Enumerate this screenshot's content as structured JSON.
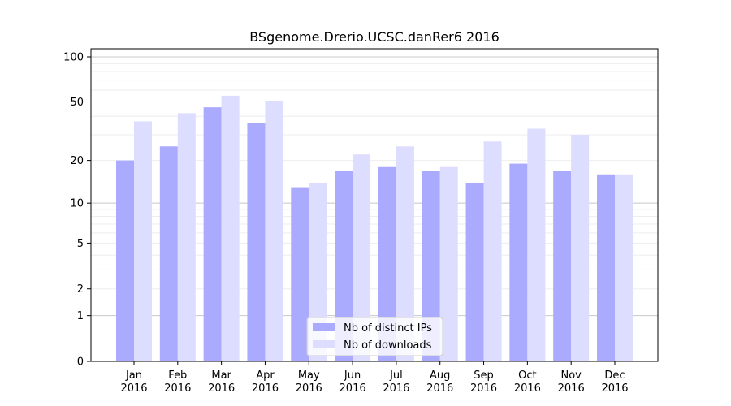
{
  "chart_data": {
    "type": "bar",
    "title": "BSgenome.Drerio.UCSC.danRer6 2016",
    "xlabel": "",
    "ylabel": "",
    "y_scale": "log(1+y)",
    "ylim": [
      0,
      120
    ],
    "grid": "horizontal major and minor lines",
    "y_ticks": [
      "0",
      "1",
      "2",
      "5",
      "10",
      "20",
      "50",
      "100"
    ],
    "categories": [
      [
        "Jan",
        "2016"
      ],
      [
        "Feb",
        "2016"
      ],
      [
        "Mar",
        "2016"
      ],
      [
        "Apr",
        "2016"
      ],
      [
        "May",
        "2016"
      ],
      [
        "Jun",
        "2016"
      ],
      [
        "Jul",
        "2016"
      ],
      [
        "Aug",
        "2016"
      ],
      [
        "Sep",
        "2016"
      ],
      [
        "Oct",
        "2016"
      ],
      [
        "Nov",
        "2016"
      ],
      [
        "Dec",
        "2016"
      ]
    ],
    "series": [
      {
        "name": "Nb of distinct IPs",
        "color": "#aaaaff",
        "values": [
          20,
          25,
          46,
          36,
          13,
          17,
          18,
          17,
          14,
          19,
          17,
          16
        ]
      },
      {
        "name": "Nb of downloads",
        "color": "#ddddff",
        "values": [
          37,
          42,
          55,
          51,
          14,
          22,
          25,
          18,
          27,
          33,
          30,
          16
        ]
      }
    ],
    "legend_position": "bottom-center"
  }
}
